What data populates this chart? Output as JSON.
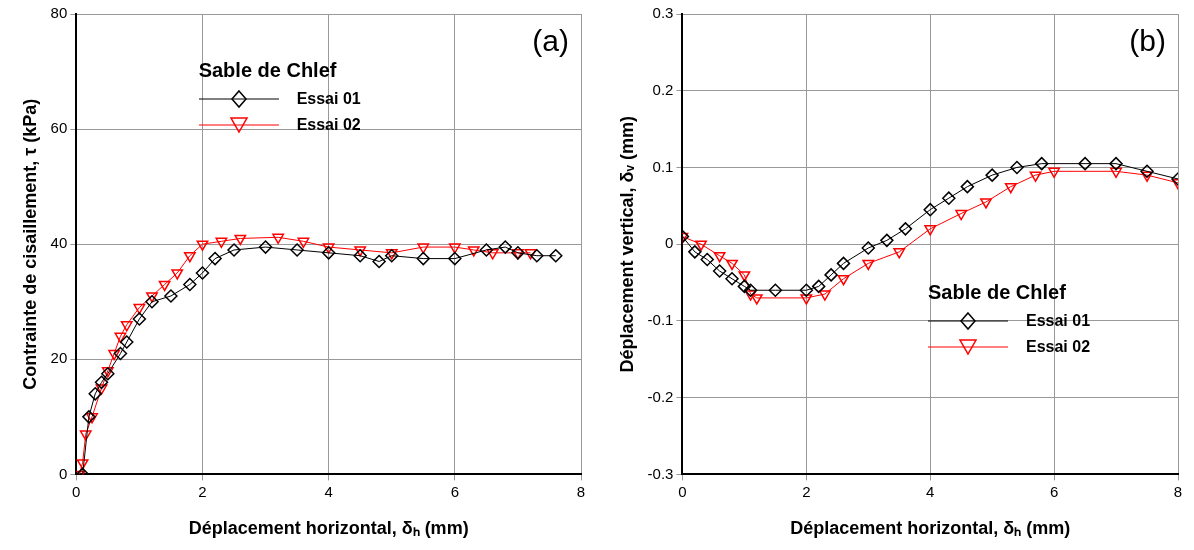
{
  "chart_data": [
    {
      "type": "line",
      "xlabel": "Déplacement horizontal, δₕ (mm)",
      "ylabel": "Contrainte de cisaillement, τ (kPa)",
      "legend_title": "Sable de Chlef",
      "legend": "top",
      "grid": true,
      "line_style": "solid",
      "annotations": [
        "(a)"
      ],
      "xlim": [
        0,
        8
      ],
      "xticks": [
        0,
        2,
        4,
        6,
        8
      ],
      "ylim": [
        0,
        80
      ],
      "yticks": [
        0,
        20,
        40,
        60,
        80
      ],
      "series": [
        {
          "name": "Essai 01",
          "color": "#000000",
          "marker": "diamond",
          "x": [
            0.1,
            0.2,
            0.3,
            0.4,
            0.5,
            0.7,
            0.8,
            1.0,
            1.2,
            1.5,
            1.8,
            2.0,
            2.2,
            2.5,
            3.0,
            3.5,
            4.0,
            4.5,
            4.8,
            5.0,
            5.5,
            6.0,
            6.5,
            6.8,
            7.0,
            7.3,
            7.6
          ],
          "values": [
            0,
            10,
            14,
            16,
            17.5,
            21,
            23,
            27,
            30,
            31,
            33,
            35,
            37.5,
            39,
            39.5,
            39,
            38.5,
            38,
            37,
            38,
            37.5,
            37.5,
            39,
            39.5,
            38.5,
            38,
            38
          ]
        },
        {
          "name": "Essai 02",
          "color": "#ff0000",
          "marker": "triangle",
          "x": [
            0.05,
            0.1,
            0.15,
            0.25,
            0.4,
            0.5,
            0.6,
            0.7,
            0.8,
            1.0,
            1.2,
            1.4,
            1.6,
            1.8,
            2.0,
            2.3,
            2.6,
            3.2,
            3.6,
            4.0,
            4.5,
            5.0,
            5.5,
            6.0,
            6.3,
            6.6,
            7.0,
            7.2
          ],
          "values": [
            0,
            2,
            7,
            10,
            15,
            18,
            21,
            24,
            26,
            29,
            31,
            33,
            35,
            38,
            40,
            40.5,
            41,
            41.2,
            40.5,
            39.5,
            39,
            38.5,
            39.5,
            39.5,
            39,
            38.5,
            38.5,
            38.5
          ]
        }
      ]
    },
    {
      "type": "line",
      "xlabel": "Déplacement horizontal, δₕ (mm)",
      "ylabel": "Déplacement vertical, δᵥ (mm)",
      "legend_title": "Sable de Chlef",
      "legend": "bottom right",
      "grid": true,
      "line_style": "solid",
      "annotations": [
        "(b)"
      ],
      "xlim": [
        0,
        8
      ],
      "xticks": [
        0,
        2,
        4,
        6,
        8
      ],
      "ylim": [
        -0.3,
        0.3
      ],
      "yticks": [
        -0.3,
        -0.2,
        -0.1,
        0,
        0.1,
        0.2,
        0.3
      ],
      "series": [
        {
          "name": "Essai 01",
          "color": "#000000",
          "marker": "diamond",
          "x": [
            0,
            0.2,
            0.4,
            0.6,
            0.8,
            1.0,
            1.1,
            1.5,
            2.0,
            2.2,
            2.4,
            2.6,
            3.0,
            3.3,
            3.6,
            4.0,
            4.3,
            4.6,
            5.0,
            5.4,
            5.8,
            6.5,
            7.0,
            7.5,
            8.0
          ],
          "values": [
            0.01,
            -0.01,
            -0.02,
            -0.035,
            -0.045,
            -0.055,
            -0.06,
            -0.06,
            -0.06,
            -0.055,
            -0.04,
            -0.025,
            -0.005,
            0.005,
            0.02,
            0.045,
            0.06,
            0.075,
            0.09,
            0.1,
            0.105,
            0.105,
            0.105,
            0.095,
            0.085
          ]
        },
        {
          "name": "Essai 02",
          "color": "#ff0000",
          "marker": "triangle",
          "x": [
            0,
            0.3,
            0.6,
            0.8,
            1.0,
            1.1,
            1.2,
            2.0,
            2.3,
            2.6,
            3.0,
            3.5,
            4.0,
            4.5,
            4.9,
            5.3,
            5.7,
            6.0,
            7.0,
            7.5,
            8.0
          ],
          "values": [
            0.01,
            0,
            -0.015,
            -0.025,
            -0.04,
            -0.065,
            -0.07,
            -0.07,
            -0.065,
            -0.045,
            -0.025,
            -0.01,
            0.02,
            0.04,
            0.055,
            0.075,
            0.09,
            0.095,
            0.095,
            0.09,
            0.08
          ]
        }
      ]
    }
  ]
}
